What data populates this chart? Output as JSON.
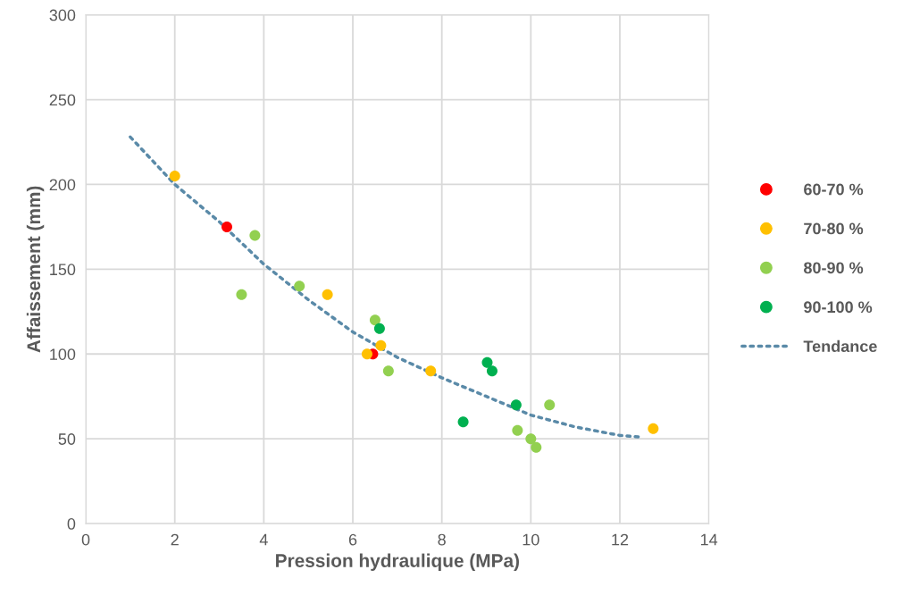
{
  "chart_data": {
    "type": "scatter",
    "xlabel": "Pression hydraulique (MPa)",
    "ylabel": "Affaissement (mm)",
    "xlim": [
      0,
      14
    ],
    "xticks": [
      0,
      2,
      4,
      6,
      8,
      10,
      12,
      14
    ],
    "ylim": [
      0,
      300
    ],
    "yticks": [
      0,
      50,
      100,
      150,
      200,
      250,
      300
    ],
    "grid": true,
    "legend": "right",
    "marker": "circle",
    "series": [
      {
        "name": "60-70 %",
        "color": "#ff0000",
        "x": [
          3.17,
          6.45
        ],
        "values": [
          175,
          100
        ]
      },
      {
        "name": "70-80 %",
        "color": "#ffc000",
        "x": [
          2.0,
          5.43,
          6.32,
          6.63,
          7.75,
          12.75
        ],
        "values": [
          205,
          135,
          100,
          105,
          90,
          56
        ]
      },
      {
        "name": "80-90 %",
        "color": "#92d050",
        "x": [
          3.5,
          3.8,
          4.8,
          6.5,
          6.8,
          9.7,
          10.0,
          10.12,
          10.42
        ],
        "values": [
          135,
          170,
          140,
          120,
          90,
          55,
          50,
          45,
          70
        ]
      },
      {
        "name": "90-100 %",
        "color": "#00b050",
        "x": [
          6.6,
          9.02,
          9.13,
          8.48,
          9.67
        ],
        "values": [
          115,
          95,
          90,
          60,
          70
        ]
      },
      {
        "name": "Tendance",
        "type": "line",
        "color": "#5a8aa8",
        "line_style": "dotted",
        "marker": "none",
        "x": [
          1,
          2,
          3,
          4,
          5,
          6,
          7,
          8,
          9,
          10,
          11,
          12,
          12.5
        ],
        "values": [
          228,
          200,
          178,
          153,
          132,
          113,
          98,
          86,
          75,
          64,
          57,
          52,
          51
        ]
      }
    ]
  }
}
